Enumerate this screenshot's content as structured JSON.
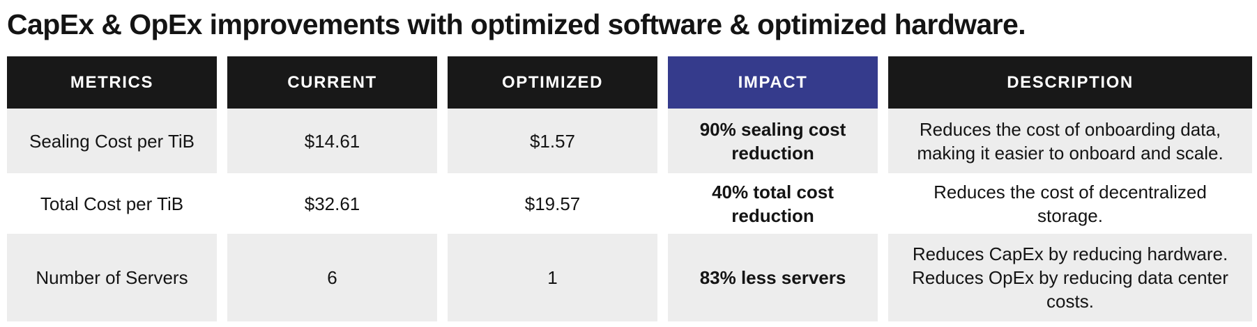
{
  "title": "CapEx & OpEx improvements with optimized software & optimized hardware.",
  "table": {
    "headers": {
      "metrics": "METRICS",
      "current": "CURRENT",
      "optimized": "OPTIMIZED",
      "impact": "IMPACT",
      "description": "DESCRIPTION"
    },
    "rows": [
      {
        "metric": "Sealing Cost per TiB",
        "current": "$14.61",
        "optimized": "$1.57",
        "impact": "90% sealing cost reduction",
        "description": "Reduces the cost of onboarding data, making it easier to onboard and scale."
      },
      {
        "metric": "Total Cost per TiB",
        "current": "$32.61",
        "optimized": "$19.57",
        "impact": "40% total cost reduction",
        "description": "Reduces the cost of decentralized storage."
      },
      {
        "metric": "Number of Servers",
        "current": "6",
        "optimized": "1",
        "impact": "83% less servers",
        "description": "Reduces CapEx by reducing hardware. Reduces OpEx by reducing data center costs."
      }
    ]
  },
  "colors": {
    "header_bg": "#181818",
    "impact_header_bg": "#353b8c",
    "row_shade": "#ededed",
    "text": "#141414"
  }
}
